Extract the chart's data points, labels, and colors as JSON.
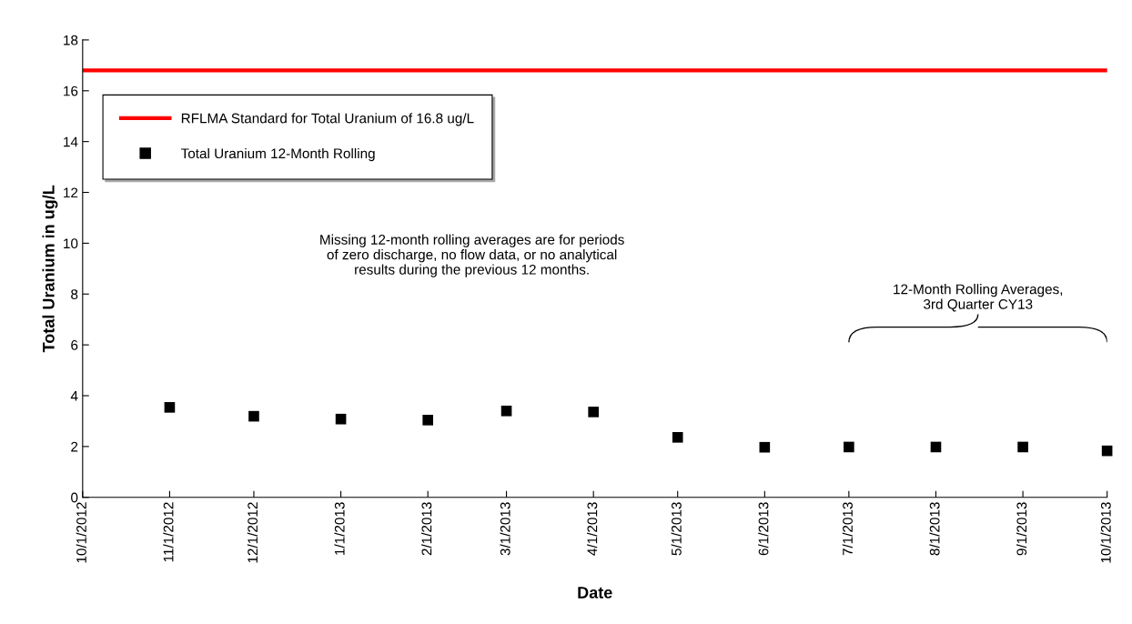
{
  "chart_data": {
    "type": "scatter",
    "xlabel": "Date",
    "ylabel": "Total Uranium in ug/L",
    "x": [
      "2012-11-01",
      "2012-12-01",
      "2013-01-01",
      "2013-02-01",
      "2013-03-01",
      "2013-04-01",
      "2013-05-01",
      "2013-06-01",
      "2013-07-01",
      "2013-08-01",
      "2013-09-01",
      "2013-10-01"
    ],
    "series": [
      {
        "name": "Total Uranium 12-Month Rolling",
        "color": "#000000",
        "values": [
          3.54,
          3.19,
          3.08,
          3.04,
          3.4,
          3.36,
          2.36,
          1.97,
          1.98,
          1.98,
          1.98,
          1.83
        ]
      }
    ],
    "marker": "square",
    "ref_lines": [
      {
        "axis": "y",
        "value": 16.8,
        "label": "RFLMA Standard for Total Uranium of 16.8 ug/L",
        "color": "#ff0000"
      }
    ],
    "annotations": [
      "Missing 12-month rolling averages are for periods\nof zero discharge, no flow data, or no analytical\nresults during the previous 12 months.",
      "12-Month Rolling Averages,\n3rd Quarter CY13"
    ],
    "xlim": [
      "2012-10-01",
      "2013-10-01"
    ],
    "xticks": [
      {
        "value": "2012-10-01",
        "label": "10/1/2012"
      },
      {
        "value": "2012-11-01",
        "label": "11/1/2012"
      },
      {
        "value": "2012-12-01",
        "label": "12/1/2012"
      },
      {
        "value": "2013-01-01",
        "label": "1/1/2013"
      },
      {
        "value": "2013-02-01",
        "label": "2/1/2013"
      },
      {
        "value": "2013-03-01",
        "label": "3/1/2013"
      },
      {
        "value": "2013-04-01",
        "label": "4/1/2013"
      },
      {
        "value": "2013-05-01",
        "label": "5/1/2013"
      },
      {
        "value": "2013-06-01",
        "label": "6/1/2013"
      },
      {
        "value": "2013-07-01",
        "label": "7/1/2013"
      },
      {
        "value": "2013-08-01",
        "label": "8/1/2013"
      },
      {
        "value": "2013-09-01",
        "label": "9/1/2013"
      },
      {
        "value": "2013-10-01",
        "label": "10/1/2013"
      }
    ],
    "ylim": [
      0,
      18
    ],
    "yticks": [
      0,
      2,
      4,
      6,
      8,
      10,
      12,
      14,
      16,
      18
    ],
    "grid": false,
    "legend": "top left"
  }
}
